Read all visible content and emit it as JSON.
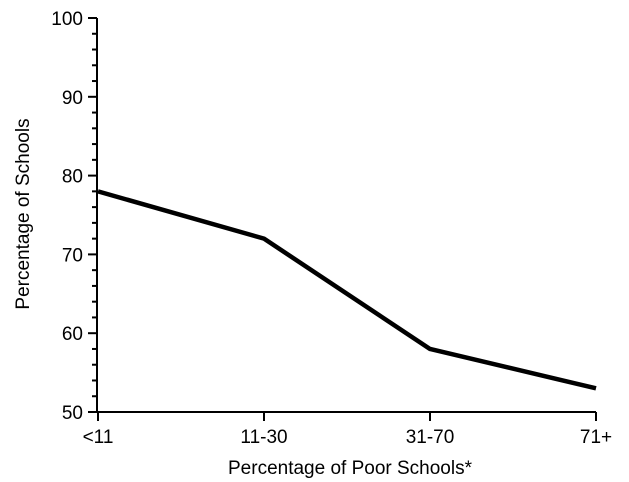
{
  "chart_data": {
    "type": "line",
    "title": "",
    "xlabel": "Percentage of Poor Schools*",
    "ylabel": "Percentage of Schools",
    "categories": [
      "<11",
      "11-30",
      "31-70",
      "71+"
    ],
    "series": [
      {
        "values": [
          78,
          72,
          58,
          53
        ]
      }
    ],
    "ylim": [
      50,
      100
    ],
    "yticks": [
      50,
      60,
      70,
      80,
      90,
      100
    ],
    "minor_y_step": 2,
    "grid": false,
    "legend": "none",
    "line_color": "#000000"
  }
}
